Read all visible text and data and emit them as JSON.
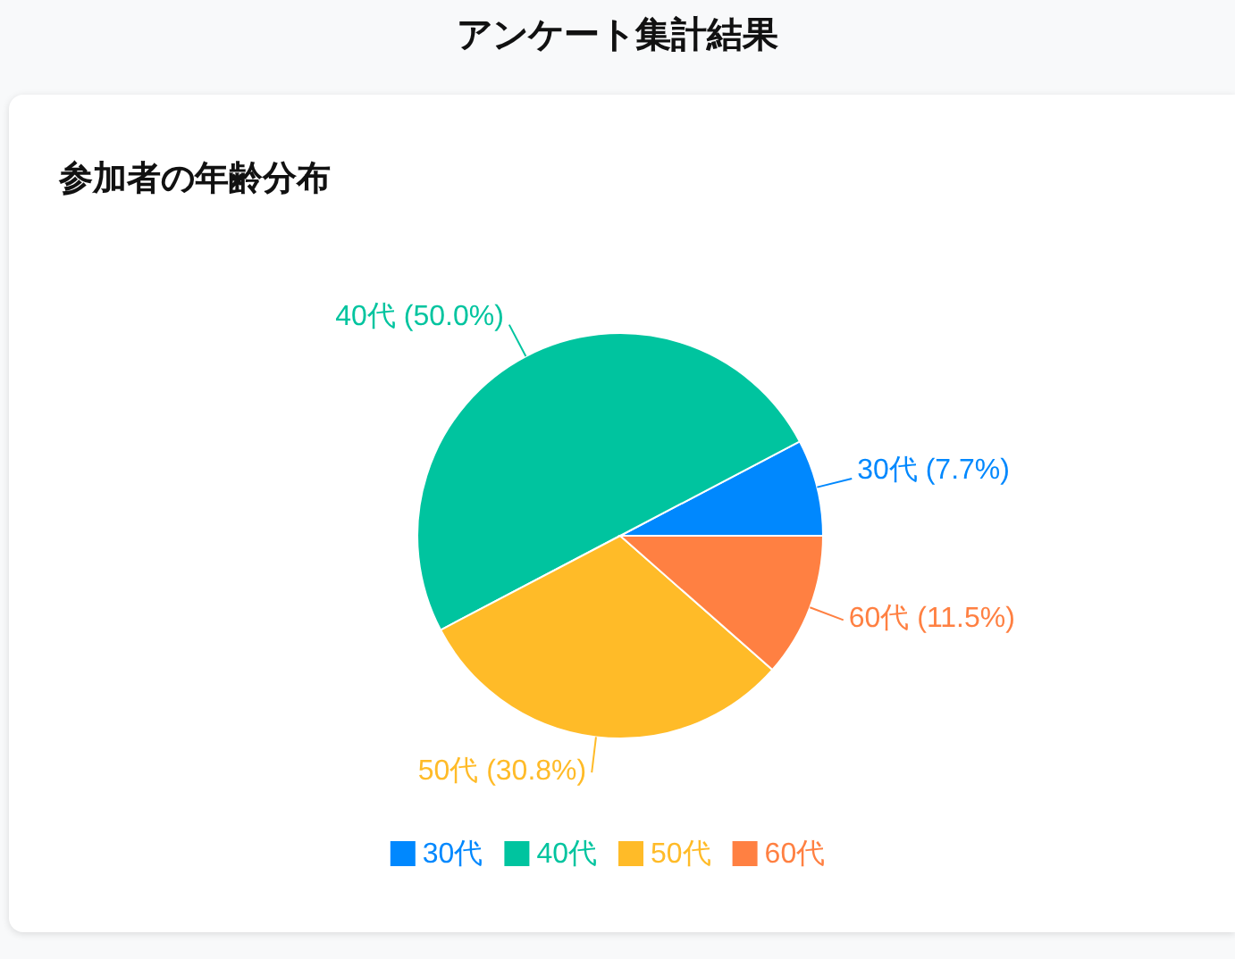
{
  "chart_data": {
    "type": "pie",
    "title": "アンケート集計結果",
    "subtitle": "参加者の年齢分布",
    "categories": [
      "30代",
      "40代",
      "50代",
      "60代"
    ],
    "values": [
      7.7,
      50.0,
      30.8,
      11.5
    ],
    "colors": [
      "#0088fe",
      "#00c49f",
      "#ffbb28",
      "#ff8042"
    ],
    "value_labels": [
      "30代 (7.7%)",
      "40代 (50.0%)",
      "50代 (30.8%)",
      "60代 (11.5%)"
    ],
    "legend": "bottom"
  }
}
